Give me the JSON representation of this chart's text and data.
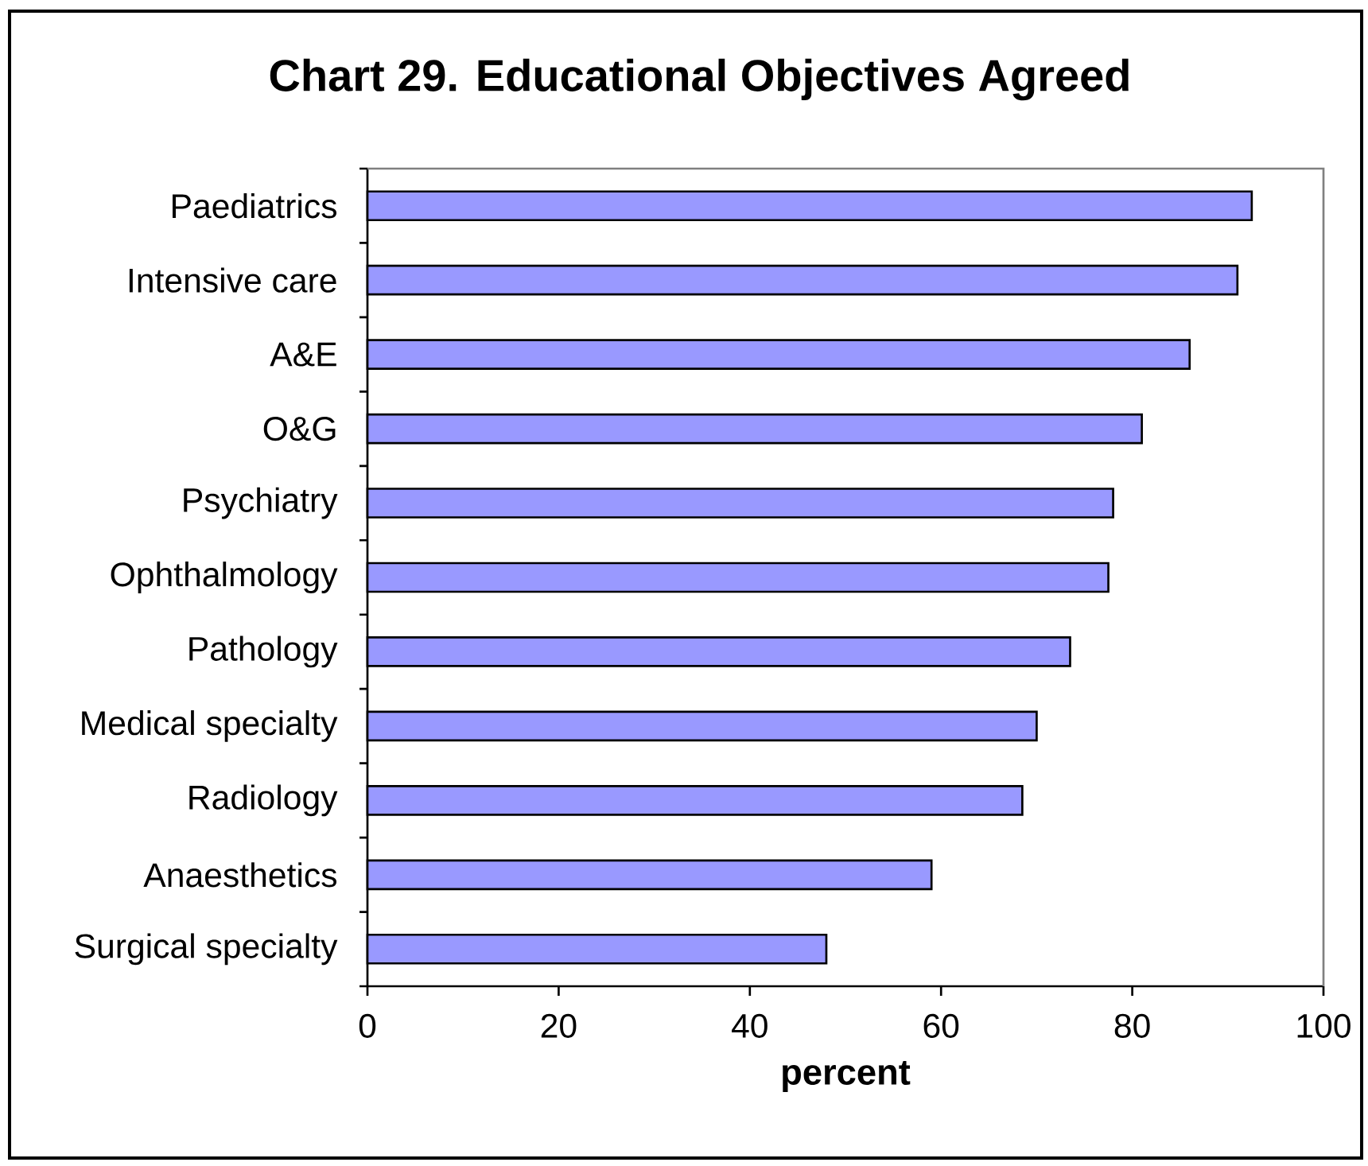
{
  "chart_data": {
    "type": "bar",
    "orientation": "horizontal",
    "title": "Chart 29. Educational Objectives Agreed",
    "xlabel": "percent",
    "categories": [
      "Paediatrics",
      "Intensive care",
      "A&E",
      "O&G",
      "Psychiatry",
      "Ophthalmology",
      "Pathology",
      "Medical specialty",
      "Radiology",
      "Anaesthetics",
      "Surgical specialty"
    ],
    "values": [
      92.5,
      91,
      86,
      81,
      78,
      77.5,
      73.5,
      70,
      68.5,
      59,
      48
    ],
    "color": "#9999ff",
    "xlim": [
      0,
      100
    ],
    "xticks": [
      0,
      20,
      40,
      60,
      80,
      100
    ]
  }
}
